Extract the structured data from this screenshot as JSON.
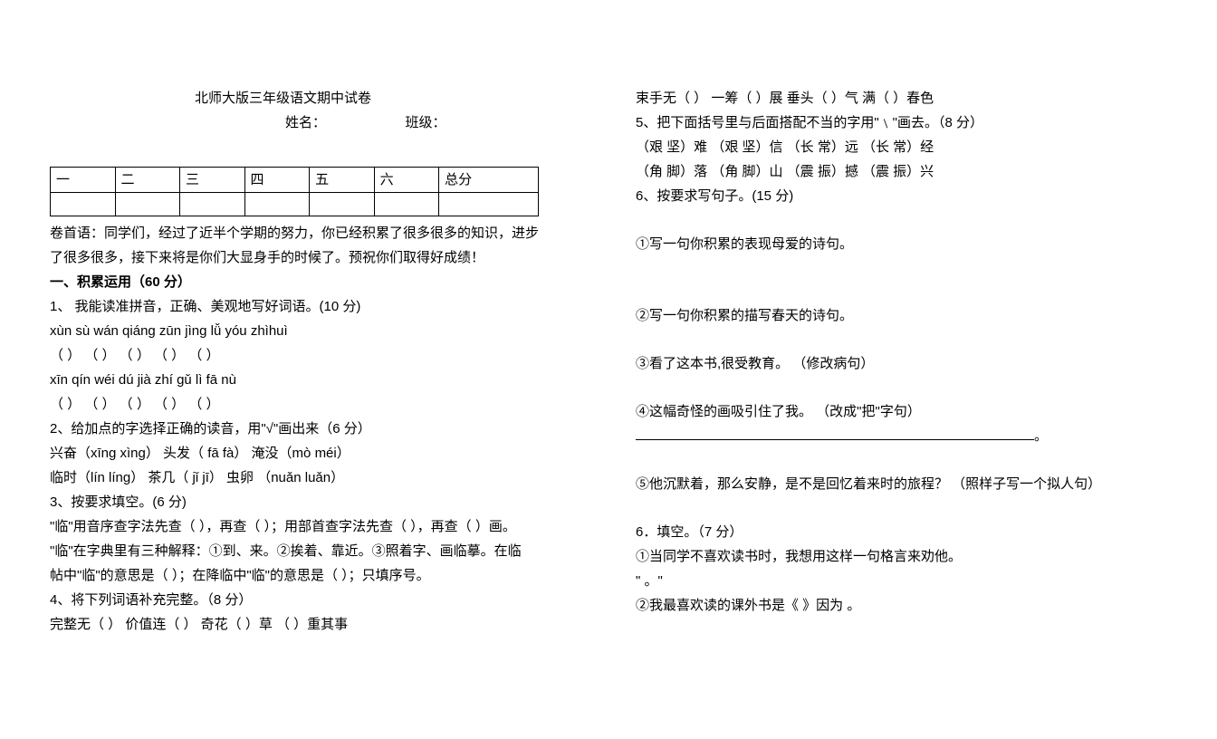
{
  "left": {
    "title": "北师大版三年级语文期中试卷",
    "name_label": "姓名：",
    "class_label": "班级：",
    "table_headers": [
      "一",
      "二",
      "三",
      "四",
      "五",
      "六",
      "总分"
    ],
    "intro1": "卷首语：同学们，经过了近半个学期的努力，你已经积累了很多很多的知识，进步",
    "intro2": "了很多很多，接下来将是你们大显身手的时候了。预祝你们取得好成绩！",
    "sec1_heading": "一、积累运用（60 分）",
    "q1": "1、  我能读准拼音，正确、美观地写好词语。(10 分)",
    "pinyin1": "xùn sù        wán qiáng      zūn jìng        lǚ yóu          zhìhuì",
    "blanks1": "（           ）   （            ）   （          ）    （          ）   （           ）",
    "pinyin2": "  xīn qín         wéi dú         jià zhí        gǔ lì          fā  nù",
    "blanks2": "（           ）   （            ）   （          ）    （          ）   （           ）",
    "q2": "2、给加点的字选择正确的读音，用\"√\"画出来（6 分）",
    "q2a": "兴奋（xīng xìng）     头发（ fā  fà）       淹没（mò        méi）",
    "q2b": "临时（lín    líng）     茶几（ jǐ jī）       虫卵 （nuǎn luǎn）",
    "q3": "3、按要求填空。(6 分)",
    "q3a": "\"临\"用音序查字法先查（    ），再查（    ）；用部首查字法先查（  ），再查（   ）画。",
    "q3b": "\"临\"在字典里有三种解释：①到、来。②挨着、靠近。③照着字、画临摹。在临",
    "q3c": "帖中\"临\"的意思是（  ）；在降临中\"临\"的意思是（  ）；只填序号。",
    "q4": "4、将下列词语补充完整。（8 分）",
    "q4a": "完整无（    ）    价值连（    ）     奇花（    ）草     （    ）重其事"
  },
  "right": {
    "r1": "束手无（    ）    一筹（   ）展    垂头（    ）气      满（    ）春色",
    "q5": "5、把下面括号里与后面搭配不当的字用\"﹨\"画去。（8 分）",
    "q5a": " （艰    坚）难       （艰    坚）信          （长  常）远          （长  常）经",
    "q5b": " （角    脚）落      （角    脚）山           （震  振）撼         （震  振）兴",
    "q6": "6、按要求写句子。(15 分)",
    "q6_1": "①写一句你积累的表现母爱的诗句。",
    "q6_2": "②写一句你积累的描写春天的诗句。",
    "q6_3": "③看了这本书,很受教育。 （修改病句）",
    "q6_4": "④这幅奇怪的画吸引住了我。   （改成\"把\"字句）",
    "q6_5": "⑤他沉默着，那么安静，是不是回忆着来时的旅程？  （照样子写一个拟人句）",
    "q6_6h": "6．填空。（7 分）",
    "q6_6a": "①当同学不喜欢读书时，我想用这样一句格言来劝他。",
    "q6_6b": "   \"                                                                                                             。\"",
    "q6_6c": "②我最喜欢读的课外书是《                  》因为                                                             。",
    "period": "。"
  }
}
